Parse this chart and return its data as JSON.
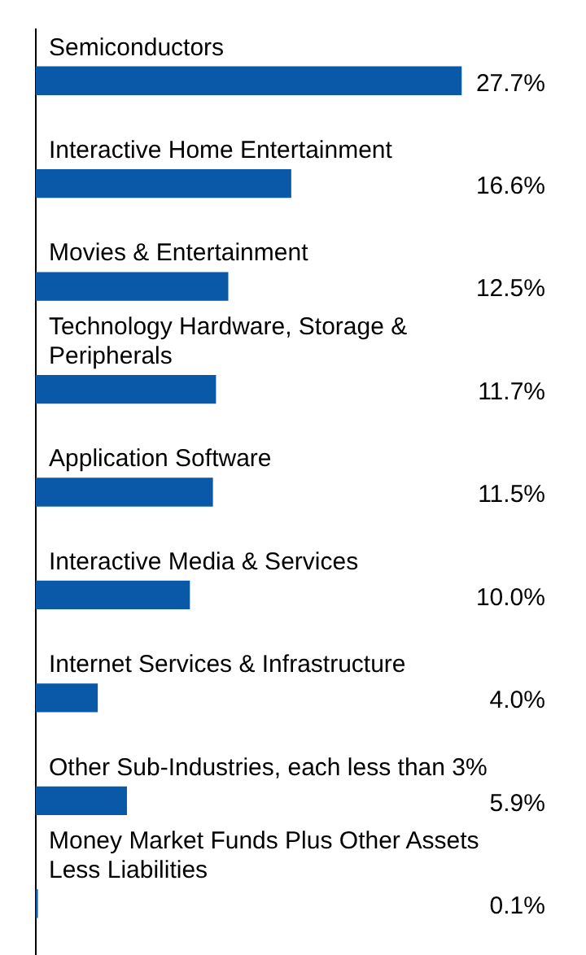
{
  "chart_data": {
    "type": "bar",
    "orientation": "horizontal",
    "categories": [
      "Semiconductors",
      "Interactive Home Entertainment",
      "Movies & Entertainment",
      "Technology Hardware, Storage & Peripherals",
      "Application Software",
      "Interactive Media & Services",
      "Internet Services & Infrastructure",
      "Other Sub-Industries, each less than 3%",
      "Money Market Funds Plus Other Assets Less Liabilities"
    ],
    "values": [
      27.7,
      16.6,
      12.5,
      11.7,
      11.5,
      10.0,
      4.0,
      5.9,
      0.1
    ],
    "value_labels": [
      "27.7%",
      "16.6%",
      "12.5%",
      "11.7%",
      "11.5%",
      "10.0%",
      "4.0%",
      "5.9%",
      "0.1%"
    ],
    "color": "#0a58a8",
    "grid": false,
    "legend": false
  }
}
